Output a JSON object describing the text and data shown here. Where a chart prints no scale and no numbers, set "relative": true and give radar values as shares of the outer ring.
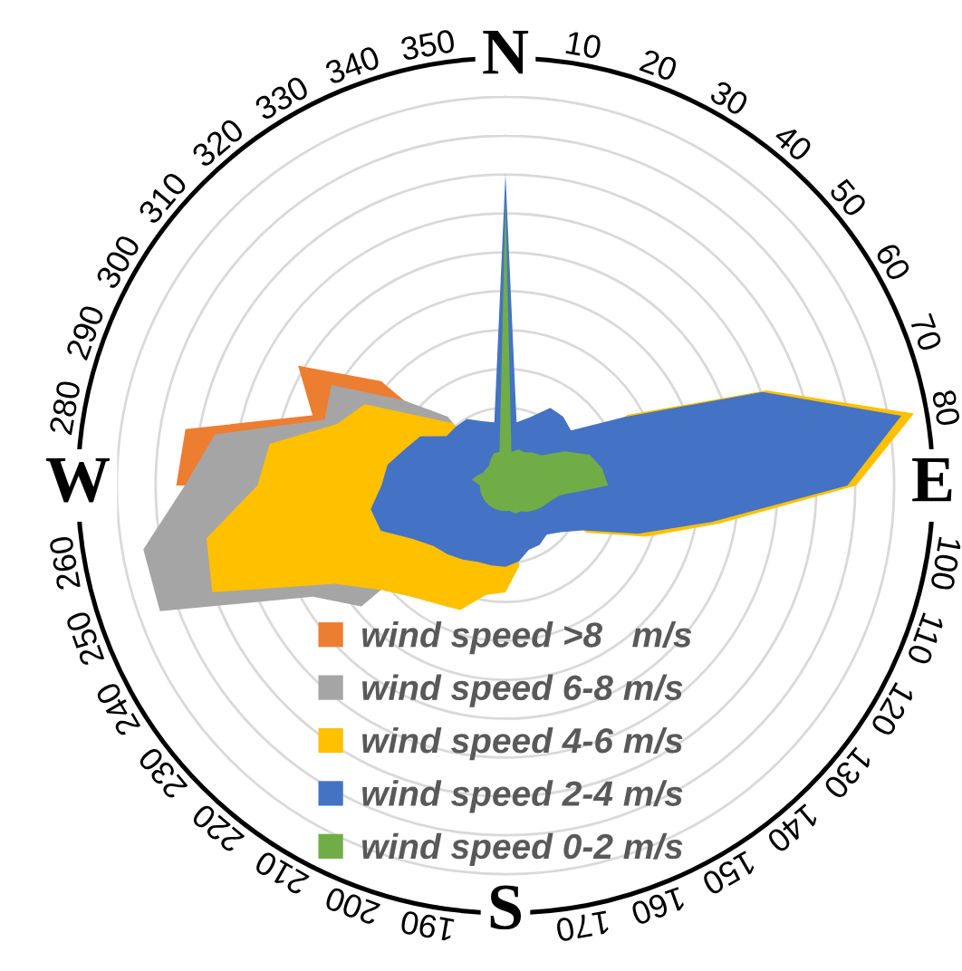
{
  "chart_data": {
    "type": "radar",
    "relative": true,
    "grid": true,
    "legend": "bottom",
    "categories": [
      "N",
      "10",
      "20",
      "30",
      "40",
      "50",
      "60",
      "70",
      "80",
      "E",
      "100",
      "110",
      "120",
      "130",
      "140",
      "150",
      "160",
      "170",
      "S",
      "190",
      "200",
      "210",
      "220",
      "230",
      "240",
      "250",
      "260",
      "W",
      "280",
      "290",
      "300",
      "310",
      "320",
      "330",
      "340",
      "350"
    ],
    "series": [
      {
        "name": "wind speed >8   m/s",
        "type": "area",
        "color": "#ed7d31",
        "values": [
          null,
          null,
          null,
          null,
          null,
          null,
          null,
          null,
          null,
          null,
          null,
          null,
          null,
          null,
          null,
          null,
          null,
          null,
          null,
          null,
          null,
          null,
          null,
          null,
          null,
          null,
          null,
          0.77,
          0.76,
          0.48,
          0.56,
          0.38,
          null,
          null,
          null,
          null
        ]
      },
      {
        "name": "wind speed 6-8 m/s",
        "type": "area",
        "color": "#a5a5a5",
        "values": [
          null,
          null,
          null,
          null,
          null,
          null,
          null,
          null,
          null,
          null,
          null,
          null,
          null,
          null,
          null,
          null,
          null,
          null,
          null,
          null,
          null,
          null,
          null,
          0.44,
          0.52,
          0.86,
          0.86,
          0.75,
          0.69,
          0.45,
          0.47,
          0.31,
          0.21,
          null,
          null,
          null
        ]
      },
      {
        "name": "wind speed 4-6 m/s",
        "type": "area",
        "color": "#ffc000",
        "values": [
          null,
          null,
          null,
          null,
          null,
          null,
          0.33,
          0.65,
          0.97,
          0.82,
          0.51,
          0.35,
          0.22,
          null,
          null,
          null,
          null,
          0.19,
          0.25,
          0.26,
          0.31,
          0.32,
          0.34,
          0.38,
          0.46,
          0.73,
          0.71,
          0.58,
          0.56,
          0.42,
          0.38,
          0.25,
          0.19,
          null,
          null,
          null
        ]
      },
      {
        "name": "wind speed 2-4 m/s",
        "type": "area",
        "color": "#4472c4",
        "values": [
          0.73,
          0.15,
          0.17,
          0.21,
          0.21,
          0.2,
          0.32,
          0.64,
          0.94,
          0.8,
          0.49,
          0.33,
          0.21,
          0.17,
          0.15,
          0.16,
          0.16,
          0.18,
          0.19,
          0.19,
          0.19,
          0.2,
          0.21,
          0.22,
          0.25,
          0.31,
          0.32,
          0.29,
          0.28,
          0.25,
          0.23,
          0.18,
          0.18,
          0.18,
          0.16,
          0.15
        ]
      },
      {
        "name": "wind speed 0-2 m/s",
        "type": "area",
        "color": "#70ad47",
        "values": [
          0.67,
          0.08,
          0.09,
          0.09,
          0.1,
          0.11,
          0.16,
          0.21,
          0.23,
          0.24,
          0.13,
          0.11,
          0.1,
          0.09,
          0.08,
          0.07,
          0.07,
          0.06,
          0.06,
          0.06,
          0.06,
          0.06,
          0.06,
          0.06,
          0.06,
          0.06,
          0.06,
          0.06,
          0.08,
          0.07,
          0.06,
          0.06,
          0.06,
          0.07,
          0.08,
          0.08
        ]
      }
    ]
  }
}
